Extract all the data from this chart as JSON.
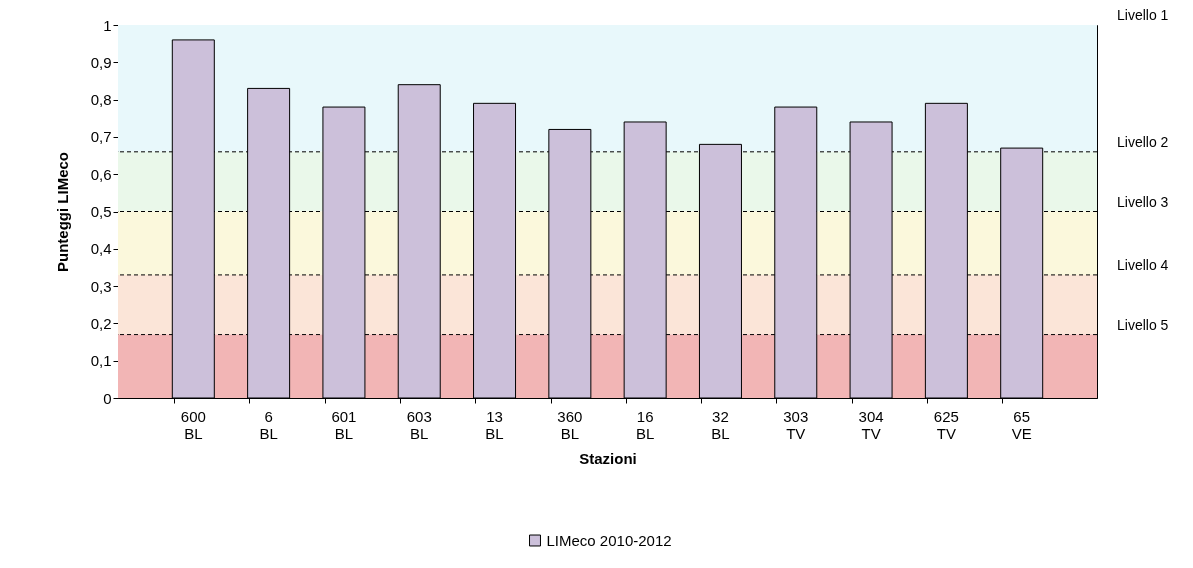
{
  "chart_data": {
    "type": "bar",
    "xlabel": "Stazioni",
    "ylabel": "Punteggi LIMeco",
    "categories": [
      "600\nBL",
      "6\nBL",
      "601\nBL",
      "603\nBL",
      "13\nBL",
      "360\nBL",
      "16\nBL",
      "32\nBL",
      "303\nTV",
      "304\nTV",
      "625\nTV",
      "65\nVE"
    ],
    "series": [
      {
        "name": "LIMeco 2010-2012",
        "color": "#ccc0da",
        "values": [
          0.96,
          0.83,
          0.78,
          0.84,
          0.79,
          0.72,
          0.74,
          0.68,
          0.78,
          0.74,
          0.79,
          0.67
        ]
      }
    ],
    "ylim": [
      0,
      1
    ],
    "yticks": [
      0,
      {
        "value": 0.1,
        "label": "0,1"
      },
      {
        "value": 0.2,
        "label": "0,2"
      },
      {
        "value": 0.3,
        "label": "0,3"
      },
      {
        "value": 0.4,
        "label": "0,4"
      },
      {
        "value": 0.5,
        "label": "0,5"
      },
      {
        "value": 0.6,
        "label": "0,6"
      },
      {
        "value": 0.7,
        "label": "0,7"
      },
      {
        "value": 0.8,
        "label": "0,8"
      },
      {
        "value": 0.9,
        "label": "0,9"
      },
      1
    ],
    "bands": [
      {
        "axis": "y",
        "from": 0.66,
        "to": 1,
        "label": "Livello 1",
        "color": "#e8f8fb"
      },
      {
        "axis": "y",
        "from": 0.5,
        "to": 0.66,
        "label": "Livello 2",
        "color": "#eaf8ea"
      },
      {
        "axis": "y",
        "from": 0.33,
        "to": 0.5,
        "label": "Livello 3",
        "color": "#fbf8dc"
      },
      {
        "axis": "y",
        "from": 0.17,
        "to": 0.33,
        "label": "Livello 4",
        "color": "#fbe5d8"
      },
      {
        "axis": "y",
        "from": 0,
        "to": 0.17,
        "label": "Livello 5",
        "color": "#f2b5b5"
      }
    ],
    "ref_lines": [
      {
        "axis": "y",
        "value": 0.66,
        "line_style": "dashed",
        "color": "#000000"
      },
      {
        "axis": "y",
        "value": 0.5,
        "line_style": "dashed",
        "color": "#000000"
      },
      {
        "axis": "y",
        "value": 0.33,
        "line_style": "dashed",
        "color": "#000000"
      },
      {
        "axis": "y",
        "value": 0.17,
        "line_style": "dashed",
        "color": "#000000"
      }
    ],
    "grid": false,
    "legend": "bottom"
  }
}
